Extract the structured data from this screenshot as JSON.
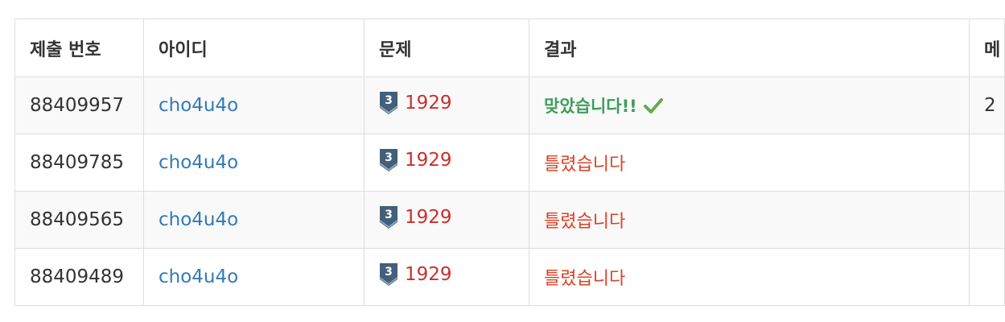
{
  "table": {
    "headers": [
      "제출 번호",
      "아이디",
      "문제",
      "결과",
      "메"
    ],
    "rows": [
      {
        "submission_id": "88409957",
        "user": "cho4u4o",
        "problem_tier": "3",
        "problem": "1929",
        "result": "맞았습니다!!",
        "result_type": "accepted",
        "extra": "2"
      },
      {
        "submission_id": "88409785",
        "user": "cho4u4o",
        "problem_tier": "3",
        "problem": "1929",
        "result": "틀렸습니다",
        "result_type": "wrong",
        "extra": ""
      },
      {
        "submission_id": "88409565",
        "user": "cho4u4o",
        "problem_tier": "3",
        "problem": "1929",
        "result": "틀렸습니다",
        "result_type": "wrong",
        "extra": ""
      },
      {
        "submission_id": "88409489",
        "user": "cho4u4o",
        "problem_tier": "3",
        "problem": "1929",
        "result": "틀렸습니다",
        "result_type": "wrong",
        "extra": ""
      }
    ]
  },
  "icons": {
    "tier": "silver-3-tier-icon",
    "check": "checkmark-icon"
  },
  "colors": {
    "link": "#337ab7",
    "problem": "#c9302c",
    "accepted": "#3c9e5c",
    "wrong": "#dd4124",
    "check": "#6aa84f",
    "tier_badge": "#435f7a"
  }
}
